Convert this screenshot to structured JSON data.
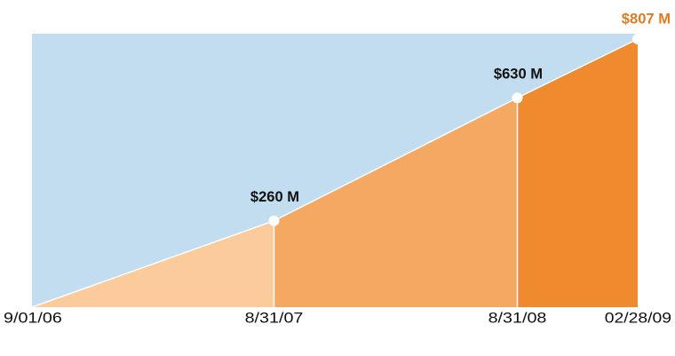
{
  "chart_data": {
    "type": "area",
    "x": [
      "9/01/06",
      "8/31/07",
      "8/31/08",
      "02/28/09"
    ],
    "values": [
      0,
      260,
      630,
      807
    ],
    "value_labels": [
      null,
      "$260 M",
      "$630 M",
      "$807 M"
    ],
    "background": "#c3ddf0",
    "colors": [
      "#fbcb9c",
      "#f4a862",
      "#ef8a2e"
    ],
    "label_colors": [
      "#111111",
      "#111111",
      "#111111",
      "#e07b22"
    ]
  }
}
